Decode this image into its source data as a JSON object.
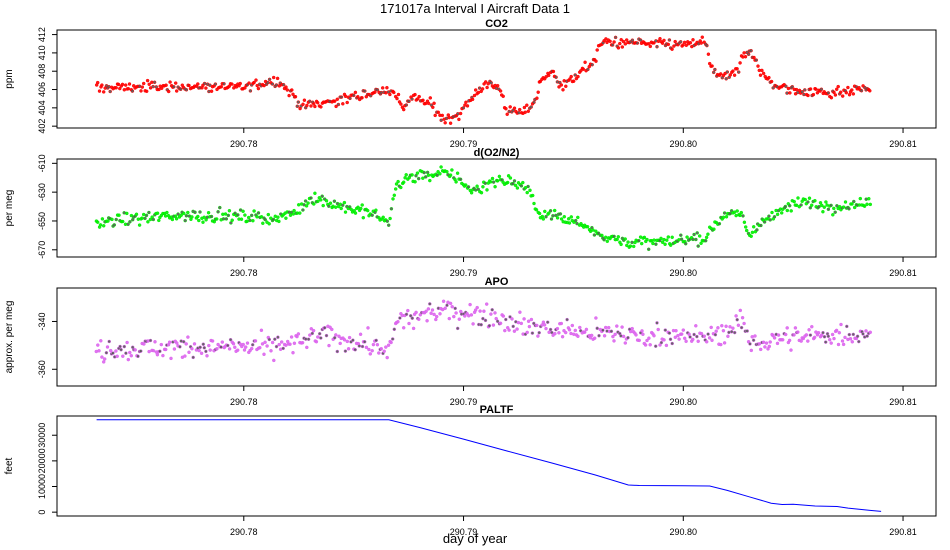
{
  "figure": {
    "title": "171017a   Interval I Aircraft Data 1",
    "xlabel": "day of year"
  },
  "chart_data": [
    {
      "type": "scatter",
      "title": "CO2",
      "ylabel": "ppm",
      "color": "#ff0000",
      "xlim": [
        290.7715,
        290.8115
      ],
      "ylim": [
        401.8,
        412.5
      ],
      "x_ticks": [
        "290.78",
        "290.79",
        "290.80",
        "290.81"
      ],
      "y_ticks": [
        "402",
        "404",
        "406",
        "408",
        "410",
        "412"
      ],
      "trend": [
        [
          290.7733,
          406.2
        ],
        [
          290.776,
          406.3
        ],
        [
          290.78,
          406.3
        ],
        [
          290.7815,
          407.0
        ],
        [
          290.7822,
          405.6
        ],
        [
          290.7826,
          404.2
        ],
        [
          290.7845,
          404.9
        ],
        [
          290.786,
          405.7
        ],
        [
          290.7866,
          406.0
        ],
        [
          290.7869,
          405.4
        ],
        [
          290.7873,
          404.0
        ],
        [
          290.7877,
          405.2
        ],
        [
          290.7885,
          404.4
        ],
        [
          290.789,
          402.9
        ],
        [
          290.7897,
          403.1
        ],
        [
          290.7906,
          405.8
        ],
        [
          290.7912,
          406.8
        ],
        [
          290.7917,
          405.8
        ],
        [
          290.792,
          403.5
        ],
        [
          290.7928,
          403.6
        ],
        [
          290.7933,
          404.9
        ],
        [
          290.7935,
          407.1
        ],
        [
          290.7941,
          407.9
        ],
        [
          290.7945,
          406.3
        ],
        [
          290.7952,
          407.6
        ],
        [
          290.796,
          409.3
        ],
        [
          290.7962,
          411.0
        ],
        [
          290.7966,
          411.2
        ],
        [
          290.798,
          411.0
        ],
        [
          290.8,
          410.9
        ],
        [
          290.801,
          411.2
        ],
        [
          290.8012,
          409.2
        ],
        [
          290.8015,
          407.6
        ],
        [
          290.802,
          407.3
        ],
        [
          290.8025,
          408.0
        ],
        [
          290.8027,
          409.7
        ],
        [
          290.803,
          410.2
        ],
        [
          290.8033,
          409.4
        ],
        [
          290.8035,
          407.8
        ],
        [
          290.8042,
          406.4
        ],
        [
          290.805,
          405.9
        ],
        [
          290.807,
          405.7
        ],
        [
          290.8085,
          406.1
        ]
      ],
      "spread": 0.55
    },
    {
      "type": "scatter",
      "title": "d(O2/N2)",
      "ylabel": "per meg",
      "color": "#00ee00",
      "xlim": [
        290.7715,
        290.8115
      ],
      "ylim": [
        -675,
        -607
      ],
      "x_ticks": [
        "290.78",
        "290.79",
        "290.80",
        "290.81"
      ],
      "y_ticks": [
        "-610",
        "-630",
        "-650",
        "-670"
      ],
      "trend": [
        [
          290.7733,
          -651
        ],
        [
          290.777,
          -646
        ],
        [
          290.78,
          -647
        ],
        [
          290.7815,
          -648
        ],
        [
          290.7822,
          -645
        ],
        [
          290.7832,
          -634
        ],
        [
          290.7845,
          -640
        ],
        [
          290.786,
          -646
        ],
        [
          290.7866,
          -651
        ],
        [
          290.7869,
          -626
        ],
        [
          290.7875,
          -620
        ],
        [
          290.7885,
          -618
        ],
        [
          290.789,
          -616
        ],
        [
          290.7898,
          -621
        ],
        [
          290.7905,
          -630
        ],
        [
          290.7912,
          -622
        ],
        [
          290.792,
          -622
        ],
        [
          290.793,
          -627
        ],
        [
          290.7933,
          -643
        ],
        [
          290.7945,
          -648
        ],
        [
          290.7955,
          -652
        ],
        [
          290.7965,
          -662
        ],
        [
          290.798,
          -665
        ],
        [
          290.8,
          -664
        ],
        [
          290.801,
          -662
        ],
        [
          290.8013,
          -655
        ],
        [
          290.802,
          -643
        ],
        [
          290.8027,
          -647
        ],
        [
          290.803,
          -660
        ],
        [
          290.8034,
          -654
        ],
        [
          290.804,
          -645
        ],
        [
          290.8055,
          -637
        ],
        [
          290.807,
          -640
        ],
        [
          290.8085,
          -637
        ]
      ],
      "spread": 4
    },
    {
      "type": "scatter",
      "title": "APO",
      "ylabel": "approx. per meg",
      "color": "#dd66ee",
      "xlim": [
        290.7715,
        290.8115
      ],
      "ylim": [
        -367,
        -326
      ],
      "x_ticks": [
        "290.78",
        "290.79",
        "290.80",
        "290.81"
      ],
      "y_ticks": [
        "-340",
        "-360"
      ],
      "trend": [
        [
          290.7733,
          -352
        ],
        [
          290.776,
          -351
        ],
        [
          290.78,
          -351
        ],
        [
          290.782,
          -350
        ],
        [
          290.7835,
          -346
        ],
        [
          290.786,
          -350
        ],
        [
          290.7866,
          -353
        ],
        [
          290.787,
          -340
        ],
        [
          290.7885,
          -337
        ],
        [
          290.789,
          -335
        ],
        [
          290.791,
          -337
        ],
        [
          290.793,
          -342
        ],
        [
          290.796,
          -345
        ],
        [
          290.8,
          -346
        ],
        [
          290.801,
          -347
        ],
        [
          290.802,
          -344
        ],
        [
          290.8027,
          -340
        ],
        [
          290.803,
          -349
        ],
        [
          290.8045,
          -347
        ],
        [
          290.807,
          -346
        ],
        [
          290.8085,
          -345
        ]
      ],
      "spread": 4.5
    },
    {
      "type": "line",
      "title": "PALTF",
      "ylabel": "feet",
      "color": "#0000ff",
      "xlim": [
        290.7715,
        290.8115
      ],
      "ylim": [
        -1500,
        37500
      ],
      "x_ticks": [
        "290.78",
        "290.79",
        "290.80",
        "290.81"
      ],
      "y_ticks": [
        "0",
        "10000",
        "20000",
        "30000"
      ],
      "x": [
        290.7733,
        290.78,
        290.7866,
        290.788,
        290.79,
        290.792,
        290.794,
        290.796,
        290.7975,
        290.798,
        290.8,
        290.8012,
        290.802,
        290.803,
        290.804,
        290.8045,
        290.805,
        290.806,
        290.807,
        290.8075,
        290.8085,
        290.809
      ],
      "y": [
        36000,
        36000,
        36000,
        33000,
        28500,
        23800,
        19200,
        14500,
        10600,
        10400,
        10300,
        10200,
        8500,
        6000,
        3500,
        3000,
        3100,
        2400,
        2200,
        1600,
        700,
        300
      ]
    }
  ]
}
